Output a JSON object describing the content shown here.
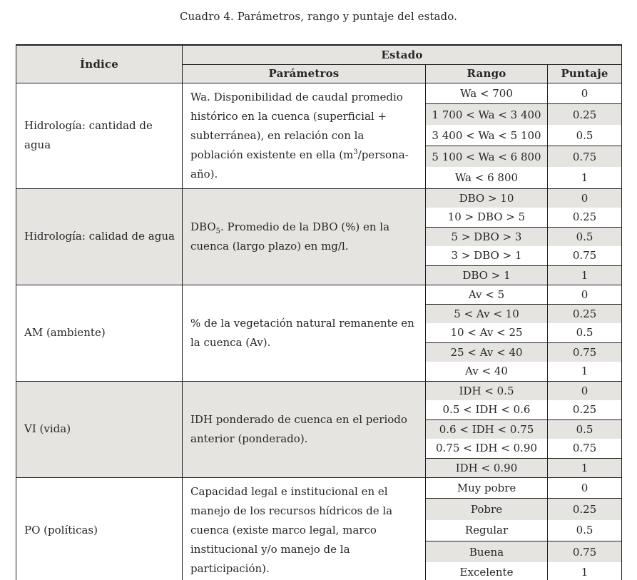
{
  "page": {
    "title": "Cuadro 4. Parámetros, rango y puntaje del estado."
  },
  "colors": {
    "shade_gray": "#e6e4e1",
    "border_black": "#1f1f1f",
    "text": "#262626",
    "background": "#ffffff"
  },
  "table": {
    "header": {
      "indice": "Índice",
      "estado": "Estado",
      "parametros": "Parámetros",
      "rango": "Rango",
      "puntaje": "Puntaje"
    },
    "blocks": [
      {
        "indice": "Hidrología: cantidad de agua",
        "shaded": false,
        "parametros": [
          {
            "text": "Wa. Disponibilidad de caudal promedio histórico en la cuenca (superficial + subterránea), en relación con la población existente en ella (m",
            "format": "normal"
          },
          {
            "text": "3",
            "format": "sup"
          },
          {
            "text": "/persona-año).",
            "format": "normal"
          }
        ],
        "rows": [
          {
            "rango": "Wa < 700",
            "puntaje": "0",
            "shaded": false
          },
          {
            "rango": "1 700 < Wa < 3 400",
            "puntaje": "0.25",
            "shaded": true
          },
          {
            "rango": "3 400 < Wa < 5 100",
            "puntaje": "0.5",
            "shaded": false
          },
          {
            "rango": "5 100 < Wa < 6 800",
            "puntaje": "0.75",
            "shaded": true
          },
          {
            "rango": "Wa < 6 800",
            "puntaje": "1",
            "shaded": false
          }
        ]
      },
      {
        "indice": "Hidrología: calidad de agua",
        "shaded": true,
        "parametros": [
          {
            "text": "DBO",
            "format": "normal"
          },
          {
            "text": "5",
            "format": "sub"
          },
          {
            "text": ". Promedio de la DBO (%) en la cuenca (largo plazo) en mg/l.",
            "format": "normal"
          }
        ],
        "rows": [
          {
            "rango": "DBO > 10",
            "puntaje": "0",
            "shaded": true
          },
          {
            "rango": "10 > DBO > 5",
            "puntaje": "0.25",
            "shaded": false
          },
          {
            "rango": "5 > DBO > 3",
            "puntaje": "0.5",
            "shaded": true
          },
          {
            "rango": "3 > DBO > 1",
            "puntaje": "0.75",
            "shaded": false
          },
          {
            "rango": "DBO > 1",
            "puntaje": "1",
            "shaded": true
          }
        ]
      },
      {
        "indice": "AM (ambiente)",
        "shaded": false,
        "parametros": [
          {
            "text": "% de la vegetación natural remanente en la cuenca (Av).",
            "format": "normal"
          }
        ],
        "rows": [
          {
            "rango": "Av < 5",
            "puntaje": "0",
            "shaded": false
          },
          {
            "rango": "5 < Av < 10",
            "puntaje": "0.25",
            "shaded": true
          },
          {
            "rango": "10 < Av < 25",
            "puntaje": "0.5",
            "shaded": false
          },
          {
            "rango": "25 < Av < 40",
            "puntaje": "0.75",
            "shaded": true
          },
          {
            "rango": "Av < 40",
            "puntaje": "1",
            "shaded": false
          }
        ]
      },
      {
        "indice": "VI (vida)",
        "shaded": true,
        "parametros": [
          {
            "text": "IDH ponderado de cuenca en el periodo anterior (ponderado).",
            "format": "normal"
          }
        ],
        "rows": [
          {
            "rango": "IDH < 0.5",
            "puntaje": "0",
            "shaded": true
          },
          {
            "rango": "0.5 < IDH < 0.6",
            "puntaje": "0.25",
            "shaded": false
          },
          {
            "rango": "0.6 < IDH < 0.75",
            "puntaje": "0.5",
            "shaded": true
          },
          {
            "rango": "0.75 < IDH < 0.90",
            "puntaje": "0.75",
            "shaded": false
          },
          {
            "rango": "IDH < 0.90",
            "puntaje": "1",
            "shaded": true
          }
        ]
      },
      {
        "indice": "PO (políticas)",
        "shaded": false,
        "parametros": [
          {
            "text": "Capacidad legal e institucional en el manejo de los recursos hídricos de la cuenca (existe marco legal, marco institucional y/o manejo de la participación).",
            "format": "normal"
          }
        ],
        "rows": [
          {
            "rango": "Muy pobre",
            "puntaje": "0",
            "shaded": false
          },
          {
            "rango": "Pobre",
            "puntaje": "0.25",
            "shaded": true
          },
          {
            "rango": "Regular",
            "puntaje": "0.5",
            "shaded": false
          },
          {
            "rango": "Buena",
            "puntaje": "0.75",
            "shaded": true
          },
          {
            "rango": "Excelente",
            "puntaje": "1",
            "shaded": false
          }
        ]
      }
    ]
  }
}
